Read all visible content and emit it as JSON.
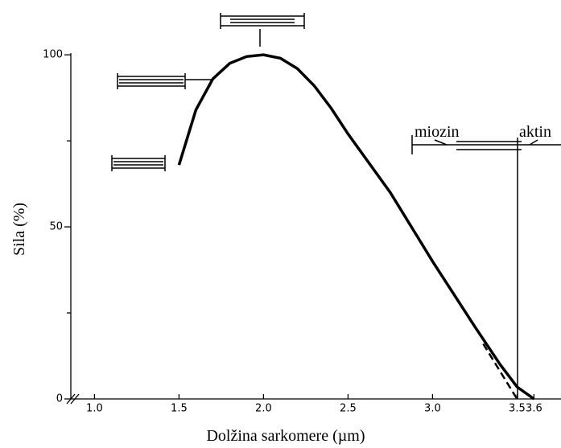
{
  "chart_data": {
    "type": "line",
    "xlabel": "Dolžina sarkomere (µm)",
    "ylabel": "Sila (%)",
    "annotations": [
      "miozin",
      "aktin"
    ],
    "xlim": [
      0.86,
      3.76
    ],
    "ylim": [
      0,
      100.5
    ],
    "xticks": [
      {
        "value": 1,
        "label": "1.0"
      },
      1.5,
      {
        "value": 2,
        "label": "2.0"
      },
      2.5,
      {
        "value": 3,
        "label": "3.0"
      },
      3.5,
      3.6
    ],
    "yticks": [
      0,
      50,
      100
    ],
    "yminorticks": [
      25,
      75
    ],
    "series": [
      {
        "color": "#000000",
        "dashed": false,
        "x": [
          1.5,
          1.6,
          1.7,
          1.8,
          1.9,
          2.0,
          2.1,
          2.2,
          2.3,
          2.4,
          2.5,
          2.75,
          3.0,
          3.25,
          3.4,
          3.5,
          3.6
        ],
        "values": [
          68,
          84,
          93,
          97.5,
          99.5,
          100,
          99,
          96,
          91,
          84.5,
          77,
          60,
          40,
          21,
          10,
          3.5,
          0
        ]
      },
      {
        "color": "#000000",
        "dashed": true,
        "x": [
          3.3,
          3.4,
          3.5
        ],
        "values": [
          16,
          8,
          0
        ]
      }
    ]
  }
}
